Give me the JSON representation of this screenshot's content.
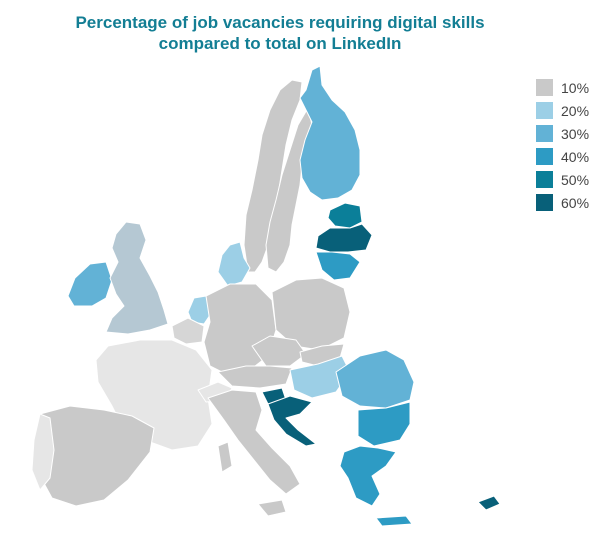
{
  "title": {
    "line1": "Percentage of job vacancies requiring digital skills",
    "line2": "compared to total on LinkedIn"
  },
  "legend": [
    {
      "label": "10%",
      "color": "#c9c9c9"
    },
    {
      "label": "20%",
      "color": "#9ccfe6"
    },
    {
      "label": "30%",
      "color": "#62b2d6"
    },
    {
      "label": "40%",
      "color": "#2d9bc4"
    },
    {
      "label": "50%",
      "color": "#0b7f99"
    },
    {
      "label": "60%",
      "color": "#086079"
    }
  ],
  "colors": {
    "title": "#137e94",
    "no_data": "#e6e6e6",
    "band_10": "#c9c9c9",
    "band_10_light": "#d6d6d6",
    "uk_grey": "#b5c8d3",
    "band_20": "#9ccfe6",
    "band_30": "#62b2d6",
    "band_40": "#2d9bc4",
    "band_50": "#0b7f99",
    "band_60": "#086079",
    "border": "#ffffff"
  }
}
